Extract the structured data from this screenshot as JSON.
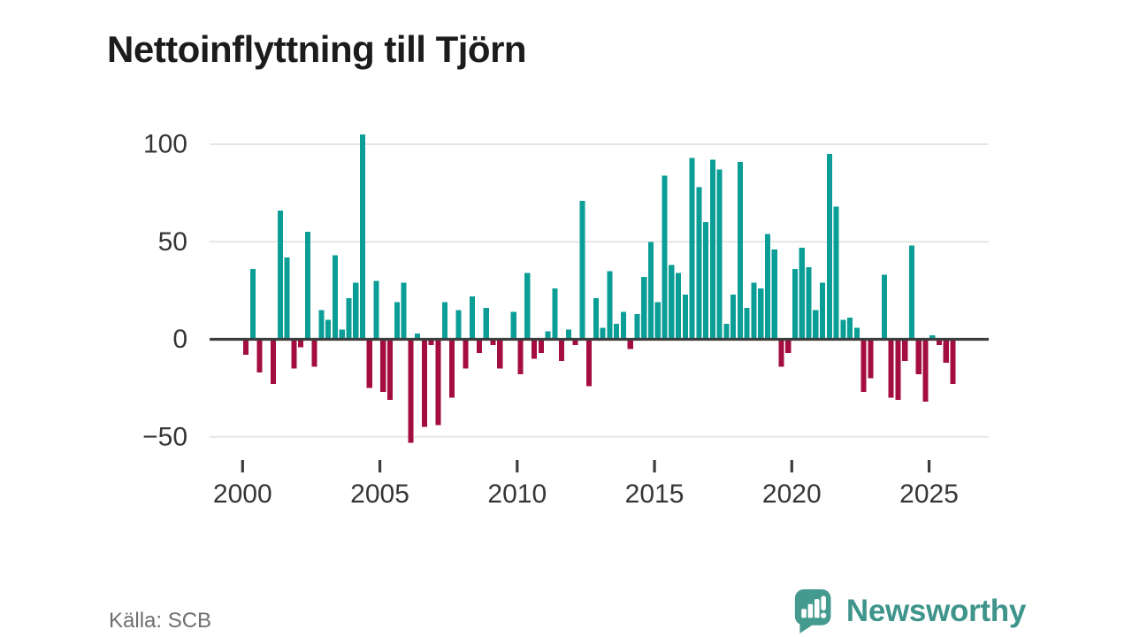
{
  "title": "Nettoinflyttning till Tjörn",
  "source": "Källa: SCB",
  "branding": {
    "name": "Newsworthy",
    "icon": "newsworthy-logo-icon"
  },
  "colors": {
    "positive": "#0a9e97",
    "negative": "#a40d3f",
    "axis": "#3d3d3d",
    "grid": "#e6e6e6",
    "tick_text": "#363636",
    "source_text": "#6f6f6f",
    "brand_text": "#3f948b",
    "brand_icon": "#459a90"
  },
  "chart_data": {
    "type": "bar",
    "title": "Nettoinflyttning till Tjörn",
    "xlabel": "",
    "ylabel": "",
    "legend": "none",
    "grid": "horizontal",
    "frequency": "quarterly",
    "start_period": "2000-Q1",
    "end_period": "2025-Q4",
    "y_ticks": [
      100,
      50,
      0,
      -50
    ],
    "ylim": [
      -60,
      110
    ],
    "x_tick_labels": [
      "2000",
      "2005",
      "2010",
      "2015",
      "2020",
      "2025"
    ],
    "values": [
      -8,
      36,
      -17,
      0,
      -23,
      66,
      42,
      -15,
      -4,
      55,
      -14,
      15,
      10,
      43,
      5,
      21,
      29,
      105,
      -25,
      30,
      -27,
      -31,
      19,
      29,
      -53,
      3,
      -45,
      -3,
      -44,
      19,
      -30,
      15,
      -15,
      22,
      -7,
      16,
      -3,
      -15,
      0,
      14,
      -18,
      34,
      -10,
      -7,
      4,
      26,
      -11,
      5,
      -3,
      71,
      -24,
      21,
      6,
      35,
      8,
      14,
      -5,
      13,
      32,
      50,
      19,
      84,
      38,
      34,
      23,
      93,
      78,
      60,
      92,
      87,
      8,
      23,
      91,
      16,
      29,
      26,
      54,
      46,
      -14,
      -7,
      36,
      47,
      37,
      15,
      29,
      95,
      68,
      10,
      11,
      6,
      -27,
      -20,
      0,
      33,
      -30,
      -31,
      -11,
      48,
      -18,
      -32,
      2,
      -3,
      -12,
      -23
    ]
  }
}
